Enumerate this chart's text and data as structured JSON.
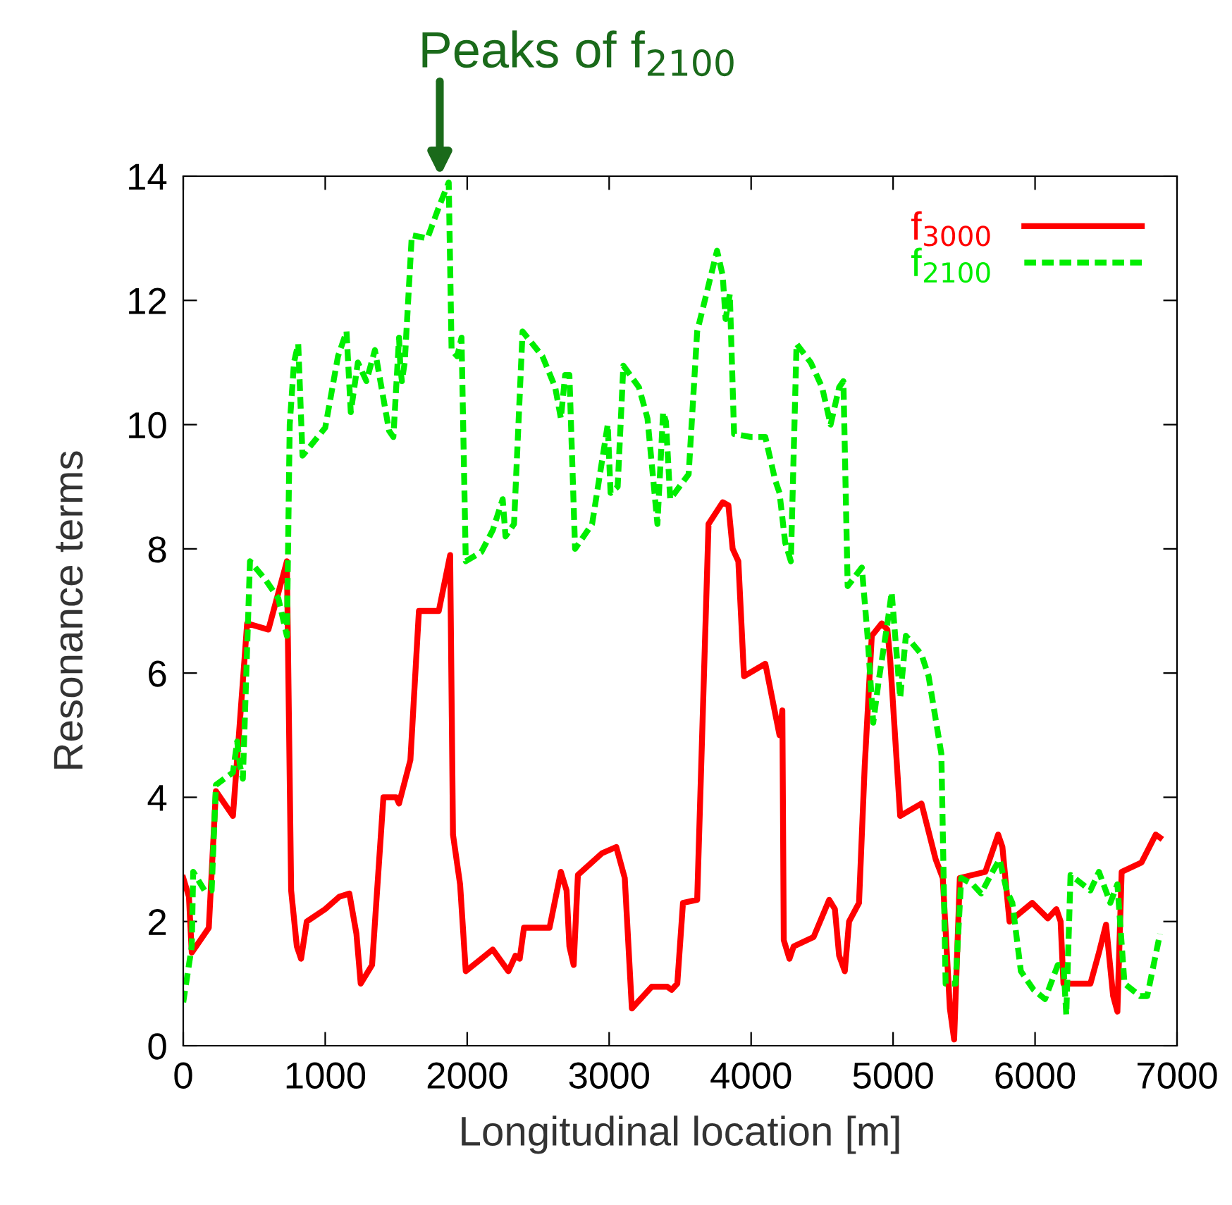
{
  "chart_data": {
    "type": "line",
    "xlabel": "Longitudinal location [m]",
    "ylabel": "Resonance terms",
    "xlim": [
      0,
      7000
    ],
    "xticks": [
      0,
      1000,
      2000,
      3000,
      4000,
      5000,
      6000,
      7000
    ],
    "ylim": [
      0,
      14
    ],
    "yticks": [
      0,
      2,
      4,
      6,
      8,
      10,
      12,
      14
    ],
    "grid": false,
    "legend": "top right",
    "annotations": [
      "Peaks of f$_{2100}$"
    ],
    "series": [
      {
        "name": "f$_{3000}$",
        "color": "#ff0000",
        "line_style": "solid",
        "x": [
          0,
          40,
          60,
          180,
          230,
          350,
          450,
          600,
          730,
          760,
          800,
          830,
          870,
          1000,
          1100,
          1170,
          1220,
          1250,
          1330,
          1410,
          1500,
          1520,
          1600,
          1660,
          1800,
          1880,
          1900,
          1950,
          1990,
          2100,
          2180,
          2290,
          2340,
          2370,
          2400,
          2580,
          2660,
          2700,
          2720,
          2750,
          2780,
          2950,
          3050,
          3110,
          3160,
          3300,
          3410,
          3440,
          3480,
          3520,
          3620,
          3700,
          3800,
          3840,
          3870,
          3910,
          3950,
          4100,
          4200,
          4220,
          4230,
          4270,
          4300,
          4440,
          4550,
          4590,
          4620,
          4660,
          4690,
          4760,
          4800,
          4850,
          4920,
          4960,
          4980,
          5050,
          5200,
          5300,
          5350,
          5400,
          5430,
          5470,
          5650,
          5740,
          5770,
          5820,
          5980,
          6090,
          6150,
          6180,
          6200,
          6390,
          6450,
          6500,
          6550,
          6580,
          6610,
          6750,
          6850,
          6880
        ],
        "values": [
          2.7,
          2.4,
          1.5,
          1.9,
          4.1,
          3.7,
          6.8,
          6.7,
          7.8,
          2.5,
          1.6,
          1.4,
          2.0,
          2.2,
          2.4,
          2.45,
          1.8,
          1.0,
          1.3,
          4.0,
          4.0,
          3.9,
          4.6,
          7.0,
          7.0,
          7.9,
          3.4,
          2.6,
          1.2,
          1.4,
          1.55,
          1.2,
          1.45,
          1.4,
          1.9,
          1.9,
          2.8,
          2.5,
          1.6,
          1.3,
          2.75,
          3.1,
          3.2,
          2.7,
          0.6,
          0.95,
          0.95,
          0.9,
          1.0,
          2.3,
          2.35,
          8.4,
          8.75,
          8.7,
          8.0,
          7.8,
          5.95,
          6.15,
          5.0,
          5.4,
          1.7,
          1.4,
          1.6,
          1.75,
          2.35,
          2.2,
          1.45,
          1.2,
          2.0,
          2.3,
          4.5,
          6.6,
          6.8,
          6.7,
          6.2,
          3.7,
          3.9,
          3.0,
          2.7,
          0.6,
          0.1,
          2.7,
          2.8,
          3.4,
          3.2,
          2.0,
          2.3,
          2.05,
          2.2,
          2.0,
          1.0,
          1.0,
          1.5,
          1.95,
          0.8,
          0.55,
          2.8,
          2.95,
          3.4,
          3.35
        ]
      },
      {
        "name": "f$_{2100}$",
        "color": "#00ee00",
        "line_style": "dashed",
        "x": [
          0,
          60,
          70,
          150,
          200,
          230,
          350,
          380,
          400,
          420,
          470,
          580,
          670,
          730,
          750,
          780,
          810,
          840,
          1000,
          1090,
          1150,
          1180,
          1230,
          1290,
          1350,
          1450,
          1480,
          1520,
          1530,
          1540,
          1560,
          1610,
          1720,
          1800,
          1870,
          1890,
          1930,
          1960,
          1990,
          2100,
          2180,
          2250,
          2270,
          2330,
          2390,
          2530,
          2620,
          2660,
          2690,
          2720,
          2760,
          2880,
          2990,
          3010,
          3060,
          3100,
          3210,
          3270,
          3340,
          3380,
          3400,
          3430,
          3560,
          3620,
          3760,
          3800,
          3820,
          3850,
          3880,
          4000,
          4100,
          4170,
          4200,
          4240,
          4280,
          4320,
          4420,
          4500,
          4560,
          4620,
          4650,
          4680,
          4780,
          4820,
          4860,
          4900,
          4960,
          4990,
          5050,
          5090,
          5200,
          5250,
          5340,
          5370,
          5440,
          5480,
          5560,
          5620,
          5700,
          5750,
          5800,
          5840,
          5900,
          5990,
          6070,
          6160,
          6200,
          6220,
          6250,
          6390,
          6450,
          6530,
          6580,
          6630,
          6740,
          6790,
          6880
        ],
        "values": [
          0.7,
          1.6,
          2.8,
          2.5,
          2.5,
          4.2,
          4.4,
          4.9,
          4.5,
          4.3,
          7.8,
          7.5,
          7.2,
          6.6,
          10.0,
          11.0,
          11.3,
          9.5,
          9.95,
          11.1,
          11.5,
          10.2,
          11.0,
          10.7,
          11.2,
          9.9,
          9.8,
          11.4,
          10.9,
          10.7,
          11.0,
          13.05,
          13.0,
          13.5,
          13.9,
          11.2,
          11.1,
          11.4,
          7.8,
          7.95,
          8.3,
          8.8,
          8.2,
          8.4,
          11.5,
          11.1,
          10.6,
          10.1,
          10.8,
          10.8,
          8.0,
          8.4,
          10.0,
          8.9,
          9.0,
          10.95,
          10.6,
          10.1,
          8.4,
          10.2,
          10.05,
          8.8,
          9.2,
          11.5,
          12.8,
          12.4,
          11.7,
          12.1,
          9.85,
          9.8,
          9.8,
          9.1,
          8.9,
          8.1,
          7.8,
          11.3,
          11.0,
          10.6,
          10.0,
          10.6,
          10.7,
          7.4,
          7.7,
          6.6,
          5.2,
          5.9,
          6.8,
          7.3,
          5.6,
          6.6,
          6.3,
          5.95,
          4.7,
          1.0,
          1.0,
          2.7,
          2.6,
          2.45,
          2.8,
          3.0,
          2.5,
          2.3,
          1.2,
          0.9,
          0.75,
          1.3,
          1.3,
          0.5,
          2.75,
          2.5,
          2.8,
          2.3,
          2.6,
          1.0,
          0.8,
          0.8,
          1.8
        ]
      }
    ]
  }
}
